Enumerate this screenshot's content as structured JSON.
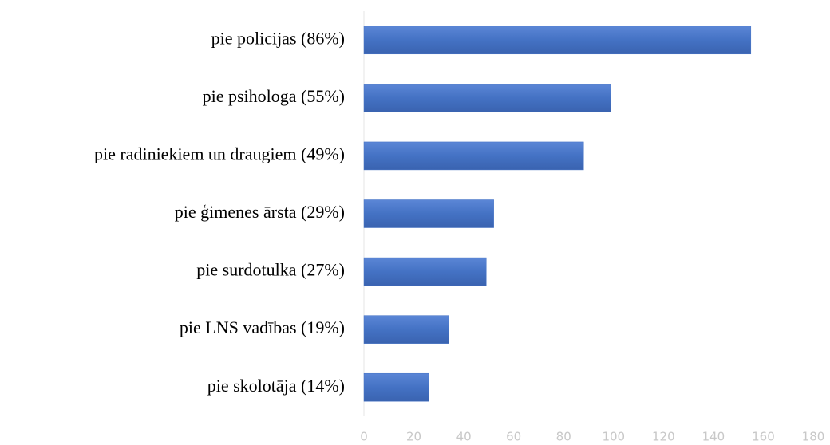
{
  "chart_data": {
    "type": "barh",
    "categories": [
      "pie policijas (86%)",
      "pie psihologa (55%)",
      "pie radiniekiem un draugiem (49%)",
      "pie ģimenes ārsta (29%)",
      "pie surdotulka (27%)",
      "pie LNS vadības (19%)",
      "pie skolotāja (14%)"
    ],
    "values": [
      155,
      99,
      88,
      52,
      49,
      34,
      26
    ],
    "color": "#4472c4",
    "xlim": [
      0,
      180
    ],
    "xticks": [
      0,
      20,
      40,
      60,
      80,
      100,
      120,
      140,
      160,
      180
    ]
  }
}
